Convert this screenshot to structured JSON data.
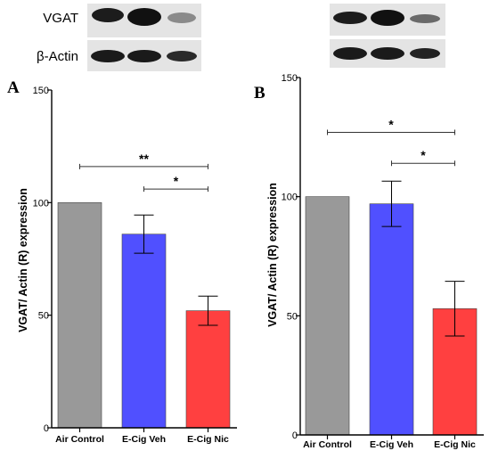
{
  "blot": {
    "vgat_label": "VGAT",
    "actin_label": "β-Actin"
  },
  "chart_data": [
    {
      "panel": "A",
      "type": "bar",
      "categories": [
        "Air Control",
        "E-Cig Veh",
        "E-Cig Nic"
      ],
      "values": [
        100,
        86,
        52
      ],
      "errors": [
        0,
        8.5,
        6.5
      ],
      "colors": [
        "#999999",
        "#5050ff",
        "#ff4040"
      ],
      "ylabel": "VGAT/ Actin (R) expression",
      "ylim": [
        0,
        150
      ],
      "yticks": [
        0,
        50,
        100,
        150
      ],
      "grid": false,
      "significance": [
        {
          "from": 0,
          "to": 2,
          "y": 116,
          "label": "**"
        },
        {
          "from": 1,
          "to": 2,
          "y": 106,
          "label": "*"
        }
      ]
    },
    {
      "panel": "B",
      "type": "bar",
      "categories": [
        "Air Control",
        "E-Cig Veh",
        "E-Cig Nic"
      ],
      "values": [
        100,
        97,
        53
      ],
      "errors": [
        0,
        9.5,
        11.5
      ],
      "colors": [
        "#999999",
        "#5050ff",
        "#ff4040"
      ],
      "ylabel": "VGAT/ Actin (R) expression",
      "ylim": [
        0,
        150
      ],
      "yticks": [
        0,
        50,
        100,
        150
      ],
      "grid": false,
      "significance": [
        {
          "from": 0,
          "to": 2,
          "y": 127,
          "label": "*"
        },
        {
          "from": 1,
          "to": 2,
          "y": 114,
          "label": "*"
        }
      ]
    }
  ]
}
